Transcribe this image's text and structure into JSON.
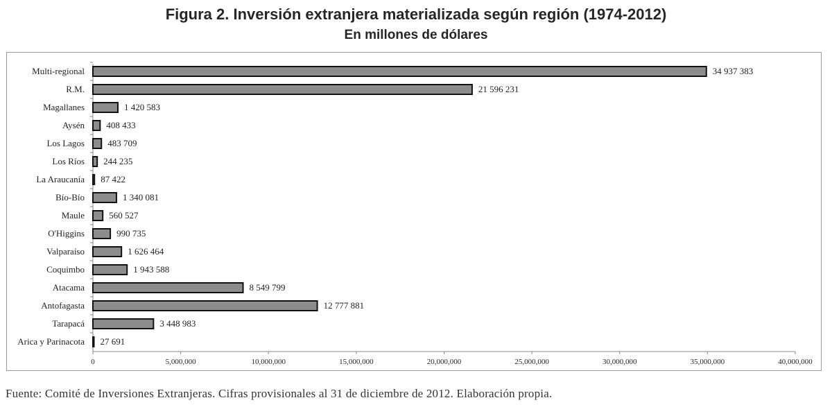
{
  "title": "Figura 2. Inversión extranjera materializada según región (1974-2012)",
  "subtitle": "En millones de dólares",
  "source": "Fuente: Comité de Inversiones Extranjeras. Cifras provisionales al 31 de diciembre de 2012. Elaboración propia.",
  "chart_data": {
    "type": "bar",
    "orientation": "horizontal",
    "categories": [
      "Multi-regional",
      "R.M.",
      "Magallanes",
      "Aysén",
      "Los Lagos",
      "Los Ríos",
      "La Araucanía",
      "Bío-Bío",
      "Maule",
      "O'Higgins",
      "Valparaíso",
      "Coquimbo",
      "Atacama",
      "Antofagasta",
      "Tarapacá",
      "Arica y Parinacota"
    ],
    "values": [
      34937383,
      21596231,
      1420583,
      408433,
      483709,
      244235,
      87422,
      1340081,
      560527,
      990735,
      1626464,
      1943588,
      8549799,
      12777881,
      3448983,
      27691
    ],
    "data_labels": [
      "34 937 383",
      "21 596 231",
      "1 420 583",
      "408 433",
      "483 709",
      "244 235",
      "87 422",
      "1 340 081",
      "560 527",
      "990 735",
      "1 626 464",
      "1 943 588",
      "8 549 799",
      "12 777 881",
      "3 448 983",
      "27 691"
    ],
    "xlim": [
      0,
      40000000
    ],
    "xticks": [
      0,
      5000000,
      10000000,
      15000000,
      20000000,
      25000000,
      30000000,
      35000000,
      40000000
    ],
    "xtick_labels": [
      "0",
      "5,000,000",
      "10,000,000",
      "15,000,000",
      "20,000,000",
      "25,000,000",
      "30,000,000",
      "35,000,000",
      "40,000,000"
    ],
    "grid": false,
    "legend": "none",
    "colors": {
      "bar_fill": "#8c8c8c",
      "bar_stroke": "#111111",
      "axis": "#888888",
      "text": "#222222"
    }
  }
}
